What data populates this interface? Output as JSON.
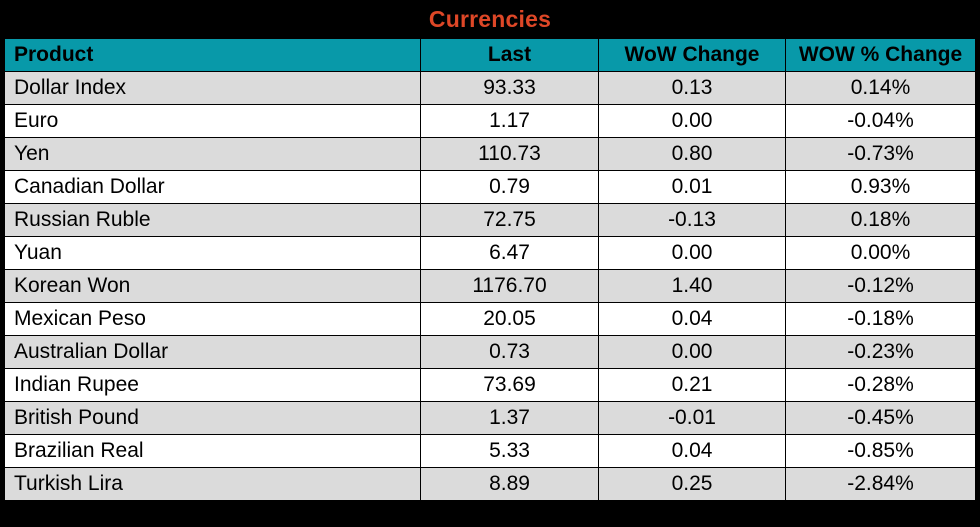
{
  "title": "Currencies",
  "colors": {
    "title_text": "#DE4727",
    "header_bg": "#0899A9",
    "header_text": "#000000",
    "row_even_bg": "#FFFFFF",
    "row_odd_bg": "#DBDBDB",
    "frame": "#000000"
  },
  "chart_data": {
    "type": "table",
    "title": "Currencies",
    "columns": [
      "Product",
      "Last",
      "WoW Change",
      "WOW % Change"
    ],
    "rows": [
      [
        "Dollar Index",
        "93.33",
        "0.13",
        "0.14%"
      ],
      [
        "Euro",
        "1.17",
        "0.00",
        "-0.04%"
      ],
      [
        "Yen",
        "110.73",
        "0.80",
        "-0.73%"
      ],
      [
        "Canadian Dollar",
        "0.79",
        "0.01",
        "0.93%"
      ],
      [
        "Russian Ruble",
        "72.75",
        "-0.13",
        "0.18%"
      ],
      [
        "Yuan",
        "6.47",
        "0.00",
        "0.00%"
      ],
      [
        "Korean Won",
        "1176.70",
        "1.40",
        "-0.12%"
      ],
      [
        "Mexican Peso",
        "20.05",
        "0.04",
        "-0.18%"
      ],
      [
        "Australian Dollar",
        "0.73",
        "0.00",
        "-0.23%"
      ],
      [
        "Indian Rupee",
        "73.69",
        "0.21",
        "-0.28%"
      ],
      [
        "British Pound",
        "1.37",
        "-0.01",
        "-0.45%"
      ],
      [
        "Brazilian Real",
        "5.33",
        "0.04",
        "-0.85%"
      ],
      [
        "Turkish Lira",
        "8.89",
        "0.25",
        "-2.84%"
      ]
    ]
  }
}
